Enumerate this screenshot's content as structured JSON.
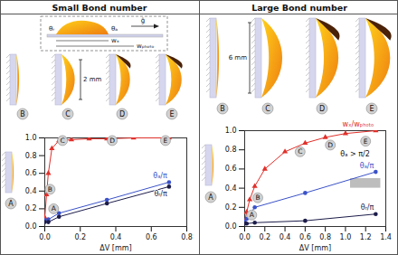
{
  "panels": [
    {
      "title": "Small Bond number",
      "scale_bar": "2 mm",
      "inset_labels": {
        "theta_a": "θₐ",
        "theta_r": "θᵣ",
        "g": "ĝ",
        "w_x": "wₓ",
        "w_photo": "wₚₕₒₜₒ"
      },
      "illustration_labels": [
        "A",
        "B",
        "C",
        "D",
        "E"
      ]
    },
    {
      "title": "Large Bond number",
      "scale_bar": "6 mm",
      "illustration_labels": [
        "A",
        "B",
        "C",
        "D",
        "E"
      ]
    }
  ],
  "chart_data": [
    {
      "type": "line",
      "xlabel": "ΔV [mm]",
      "xlim": [
        0,
        0.8
      ],
      "xticks": [
        {
          "value": 0,
          "label": "0.0"
        },
        0.2,
        0.4,
        0.6,
        0.8
      ],
      "ylim": [
        0,
        1
      ],
      "yticks": [
        {
          "value": 0,
          "label": "0.0"
        },
        0.2,
        0.4,
        0.6,
        0.8,
        {
          "value": 1,
          "label": "1.0"
        }
      ],
      "series": [
        {
          "color": "#e0302a",
          "marker": "triangle",
          "x": [
            0,
            0.01,
            0.02,
            0.04,
            0.08,
            0.15,
            0.25,
            0.35,
            0.5,
            0.7
          ],
          "values": [
            0.1,
            0.36,
            0.6,
            0.88,
            0.97,
            0.98,
            0.99,
            0.99,
            1.0,
            1.0
          ]
        },
        {
          "name": "θₐ/π",
          "color": "#3a52c8",
          "marker": "circle",
          "x": [
            0,
            0.02,
            0.08,
            0.35,
            0.7
          ],
          "values": [
            0.07,
            0.08,
            0.15,
            0.3,
            0.5
          ]
        },
        {
          "name": "θᵣ/π",
          "color": "#1c1c4a",
          "marker": "circle",
          "x": [
            0,
            0.02,
            0.08,
            0.35,
            0.7
          ],
          "values": [
            0.05,
            0.05,
            0.11,
            0.26,
            0.45
          ]
        }
      ],
      "point_labels": [
        {
          "text": "A",
          "x": 0.05,
          "y": 0.2
        },
        {
          "text": "B",
          "x": 0.03,
          "y": 0.42
        },
        {
          "text": "C",
          "x": 0.1,
          "y": 0.97
        },
        {
          "text": "D",
          "x": 0.38,
          "y": 0.97
        },
        {
          "text": "E",
          "x": 0.68,
          "y": 0.97
        }
      ]
    },
    {
      "type": "line",
      "xlabel": "ΔV [mm]",
      "xlim": [
        0,
        1.4
      ],
      "xticks": [
        {
          "value": 0,
          "label": "0.0"
        },
        0.2,
        0.4,
        0.6,
        0.8,
        {
          "value": 1,
          "label": "1.0"
        },
        1.2,
        1.4
      ],
      "ylim": [
        0,
        1
      ],
      "yticks": [
        {
          "value": 0,
          "label": "0.0"
        },
        0.2,
        0.4,
        0.6,
        0.8,
        {
          "value": 1,
          "label": "1.0"
        }
      ],
      "series": [
        {
          "name": "wₓ/wₚₕₒₜₒ",
          "color": "#e0302a",
          "marker": "triangle",
          "x": [
            0,
            0.02,
            0.05,
            0.1,
            0.2,
            0.4,
            0.6,
            0.8,
            1.0,
            1.3
          ],
          "values": [
            0.05,
            0.15,
            0.28,
            0.42,
            0.6,
            0.78,
            0.87,
            0.93,
            0.97,
            1.0
          ]
        },
        {
          "name": "θₐ/π",
          "color": "#3a52c8",
          "marker": "circle",
          "x": [
            0,
            0.02,
            0.1,
            0.6,
            1.3
          ],
          "values": [
            0.05,
            0.08,
            0.2,
            0.35,
            0.57
          ]
        },
        {
          "name": "θᵣ/π",
          "color": "#1c1c4a",
          "marker": "circle",
          "x": [
            0,
            0.02,
            0.1,
            0.6,
            1.3
          ],
          "values": [
            0.03,
            0.03,
            0.04,
            0.06,
            0.13
          ]
        }
      ],
      "point_labels": [
        {
          "text": "A",
          "x": 0.07,
          "y": 0.12
        },
        {
          "text": "B",
          "x": 0.13,
          "y": 0.3
        },
        {
          "text": "C",
          "x": 0.55,
          "y": 0.78
        },
        {
          "text": "D",
          "x": 0.85,
          "y": 0.85
        },
        {
          "text": "E",
          "x": 1.2,
          "y": 0.89
        }
      ],
      "annotations": [
        {
          "text": "θₐ > π/2",
          "x": 0.95,
          "y": 0.76
        }
      ],
      "shaded_region": {
        "x": [
          1.05,
          1.35
        ],
        "y": [
          0.4,
          0.5
        ]
      }
    }
  ]
}
